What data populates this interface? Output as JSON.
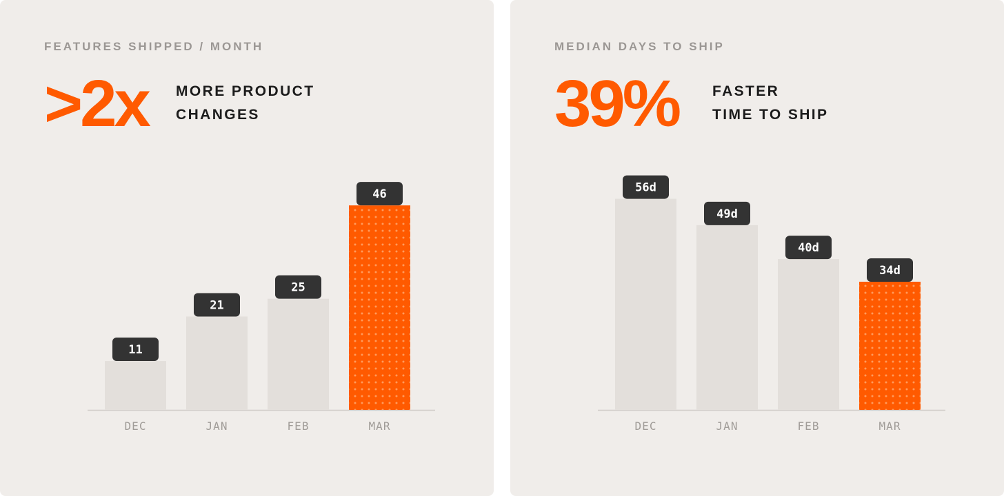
{
  "colors": {
    "accent": "#ff5a00",
    "bar": "#e3dfdb",
    "label_bg": "#333333",
    "label_text": "#ffffff",
    "axis": "#cfcbc7",
    "tick_text": "#a09c98"
  },
  "panels": [
    {
      "eyebrow": "FEATURES SHIPPED / MONTH",
      "big_stat": ">2x",
      "sub_line1": "MORE PRODUCT",
      "sub_line2": "CHANGES"
    },
    {
      "eyebrow": "MEDIAN DAYS TO SHIP",
      "big_stat": "39%",
      "sub_line1": "FASTER",
      "sub_line2": "TIME TO SHIP"
    }
  ],
  "chart_data": [
    {
      "type": "bar",
      "title": "FEATURES SHIPPED / MONTH",
      "categories": [
        "DEC",
        "JAN",
        "FEB",
        "MAR"
      ],
      "values": [
        11,
        21,
        25,
        46
      ],
      "data_labels": [
        "11",
        "21",
        "25",
        "46"
      ],
      "highlight_index": 3,
      "ylim": [
        0,
        53
      ],
      "grid": false
    },
    {
      "type": "bar",
      "title": "MEDIAN DAYS TO SHIP",
      "categories": [
        "DEC",
        "JAN",
        "FEB",
        "MAR"
      ],
      "values": [
        56,
        49,
        40,
        34
      ],
      "data_labels": [
        "56d",
        "49d",
        "40d",
        "34d"
      ],
      "highlight_index": 3,
      "ylim": [
        0,
        62.5
      ],
      "grid": false
    }
  ]
}
